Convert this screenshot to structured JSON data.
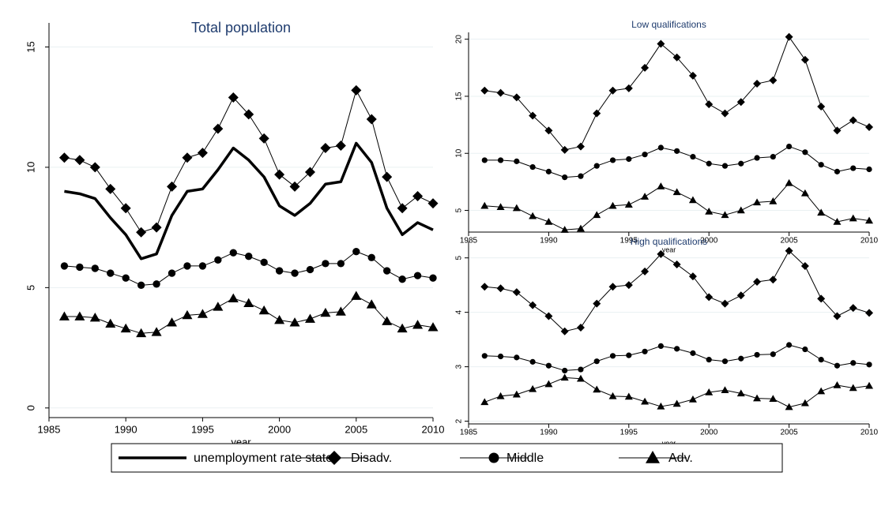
{
  "chart_data": [
    {
      "type": "line",
      "title": "Total population",
      "x_label": "year",
      "title_color": "#1f3c6e",
      "x": [
        1986,
        1987,
        1988,
        1989,
        1990,
        1991,
        1992,
        1993,
        1994,
        1995,
        1996,
        1997,
        1998,
        1999,
        2000,
        2001,
        2002,
        2003,
        2004,
        2005,
        2006,
        2007,
        2008,
        2009,
        2010
      ],
      "xlim": [
        1985,
        2010
      ],
      "xticks": [
        1985,
        1990,
        1995,
        2000,
        2005,
        2010
      ],
      "ylim": [
        -0.4,
        16
      ],
      "yticks": [
        0,
        5,
        10,
        15
      ],
      "grid": true,
      "series": [
        {
          "name": "unemployment rate state",
          "color": "#000000",
          "marker": "none",
          "line_width": 3.5,
          "values": [
            9.0,
            8.9,
            8.7,
            7.9,
            7.2,
            6.2,
            6.4,
            8.0,
            9.0,
            9.1,
            9.9,
            10.8,
            10.3,
            9.6,
            8.4,
            8.0,
            8.5,
            9.3,
            9.4,
            11.0,
            10.2,
            8.3,
            7.2,
            7.7,
            7.4
          ]
        },
        {
          "name": "Disadv.",
          "color": "#000000",
          "marker": "diamond",
          "line_width": 1,
          "values": [
            10.4,
            10.3,
            10.0,
            9.1,
            8.3,
            7.3,
            7.5,
            9.2,
            10.4,
            10.6,
            11.6,
            12.9,
            12.2,
            11.2,
            9.7,
            9.2,
            9.8,
            10.8,
            10.9,
            13.2,
            12.0,
            9.6,
            8.3,
            8.8,
            8.5
          ]
        },
        {
          "name": "Middle",
          "color": "#000000",
          "marker": "circle",
          "line_width": 1,
          "values": [
            5.9,
            5.85,
            5.8,
            5.6,
            5.4,
            5.1,
            5.15,
            5.6,
            5.9,
            5.9,
            6.15,
            6.45,
            6.3,
            6.05,
            5.7,
            5.6,
            5.75,
            6.0,
            6.0,
            6.5,
            6.25,
            5.7,
            5.35,
            5.5,
            5.4
          ]
        },
        {
          "name": "Adv.",
          "color": "#000000",
          "marker": "triangle",
          "line_width": 1,
          "values": [
            3.8,
            3.8,
            3.75,
            3.5,
            3.3,
            3.1,
            3.15,
            3.55,
            3.85,
            3.9,
            4.2,
            4.55,
            4.35,
            4.05,
            3.65,
            3.55,
            3.7,
            3.95,
            4.0,
            4.65,
            4.3,
            3.6,
            3.3,
            3.45,
            3.35
          ]
        }
      ]
    },
    {
      "type": "line",
      "title": "Low qualifications",
      "x_label": "year",
      "title_color": "#1f3c6e",
      "x": [
        1986,
        1987,
        1988,
        1989,
        1990,
        1991,
        1992,
        1993,
        1994,
        1995,
        1996,
        1997,
        1998,
        1999,
        2000,
        2001,
        2002,
        2003,
        2004,
        2005,
        2006,
        2007,
        2008,
        2009,
        2010
      ],
      "xlim": [
        1985,
        2010
      ],
      "xticks": [
        1985,
        1990,
        1995,
        2000,
        2005,
        2010
      ],
      "ylim": [
        3.1,
        20.6
      ],
      "yticks": [
        5,
        10,
        15,
        20
      ],
      "grid": true,
      "series": [
        {
          "color": "#000000",
          "marker": "diamond",
          "line_width": 1,
          "values": [
            15.5,
            15.3,
            14.9,
            13.3,
            12.0,
            10.3,
            10.6,
            13.5,
            15.5,
            15.7,
            17.5,
            19.6,
            18.4,
            16.8,
            14.3,
            13.5,
            14.5,
            16.1,
            16.4,
            20.2,
            18.2,
            14.1,
            12.0,
            12.9,
            12.3
          ]
        },
        {
          "color": "#000000",
          "marker": "circle",
          "line_width": 1,
          "values": [
            9.4,
            9.4,
            9.3,
            8.8,
            8.4,
            7.9,
            8.0,
            8.9,
            9.4,
            9.5,
            9.9,
            10.5,
            10.2,
            9.7,
            9.1,
            8.9,
            9.1,
            9.6,
            9.7,
            10.6,
            10.1,
            9.0,
            8.4,
            8.7,
            8.6
          ]
        },
        {
          "color": "#000000",
          "marker": "triangle",
          "line_width": 1,
          "values": [
            5.4,
            5.3,
            5.2,
            4.5,
            4.0,
            3.3,
            3.4,
            4.6,
            5.4,
            5.5,
            6.2,
            7.1,
            6.6,
            5.9,
            4.9,
            4.6,
            5.0,
            5.7,
            5.8,
            7.4,
            6.5,
            4.8,
            4.0,
            4.3,
            4.1
          ]
        }
      ]
    },
    {
      "type": "line",
      "title": "High qualifications",
      "x_label": "year",
      "title_color": "#1f3c6e",
      "x": [
        1986,
        1987,
        1988,
        1989,
        1990,
        1991,
        1992,
        1993,
        1994,
        1995,
        1996,
        1997,
        1998,
        1999,
        2000,
        2001,
        2002,
        2003,
        2004,
        2005,
        2006,
        2007,
        2008,
        2009,
        2010
      ],
      "xlim": [
        1985,
        2010
      ],
      "xticks": [
        1985,
        1990,
        1995,
        2000,
        2005,
        2010
      ],
      "ylim": [
        1.95,
        5.3
      ],
      "yticks": [
        2,
        3,
        4,
        5
      ],
      "grid": true,
      "series": [
        {
          "color": "#000000",
          "marker": "diamond",
          "line_width": 1,
          "values": [
            4.47,
            4.44,
            4.37,
            4.13,
            3.93,
            3.65,
            3.72,
            4.16,
            4.47,
            4.5,
            4.75,
            5.07,
            4.88,
            4.66,
            4.28,
            4.16,
            4.31,
            4.56,
            4.6,
            5.13,
            4.85,
            4.25,
            3.93,
            4.08,
            3.99
          ]
        },
        {
          "color": "#000000",
          "marker": "circle",
          "line_width": 1,
          "values": [
            3.2,
            3.19,
            3.17,
            3.09,
            3.02,
            2.93,
            2.95,
            3.1,
            3.2,
            3.21,
            3.28,
            3.38,
            3.33,
            3.25,
            3.13,
            3.1,
            3.15,
            3.22,
            3.23,
            3.4,
            3.32,
            3.13,
            3.02,
            3.07,
            3.04
          ]
        },
        {
          "color": "#000000",
          "marker": "triangle",
          "line_width": 1,
          "values": [
            2.35,
            2.46,
            2.49,
            2.59,
            2.68,
            2.8,
            2.78,
            2.58,
            2.46,
            2.45,
            2.36,
            2.27,
            2.32,
            2.4,
            2.53,
            2.57,
            2.51,
            2.42,
            2.41,
            2.26,
            2.33,
            2.55,
            2.66,
            2.61,
            2.65
          ]
        }
      ]
    }
  ]
}
